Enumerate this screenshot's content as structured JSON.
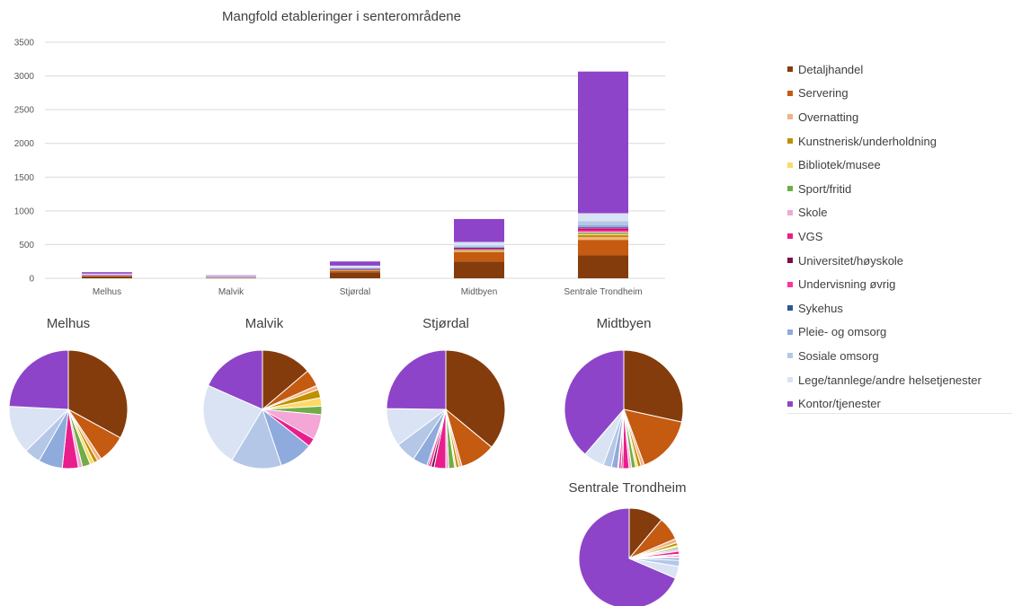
{
  "chart_data": [
    {
      "type": "bar",
      "stacked": true,
      "title": "Mangfold etableringer i senterområdene",
      "categories": [
        "Melhus",
        "Malvik",
        "Stjørdal",
        "Midtbyen",
        "Sentrale Trondheim"
      ],
      "ylim": [
        0,
        3500
      ],
      "yticks": [
        0,
        500,
        1000,
        1500,
        2000,
        2500,
        3000,
        3500
      ],
      "grid": true,
      "legend_position": "right",
      "series": [
        {
          "name": "Detaljhandel",
          "color": "#843c0c",
          "values": [
            30,
            6,
            90,
            250,
            340
          ]
        },
        {
          "name": "Servering",
          "color": "#c55a11",
          "values": [
            7,
            2,
            24,
            140,
            230
          ]
        },
        {
          "name": "Overnatting",
          "color": "#f4b183",
          "values": [
            1,
            0.5,
            2,
            8,
            40
          ]
        },
        {
          "name": "Kunstnerisk/underholdning",
          "color": "#bf9000",
          "values": [
            1,
            1,
            2,
            8,
            30
          ]
        },
        {
          "name": "Bibliotek/musee",
          "color": "#ffd966",
          "values": [
            1,
            1,
            1,
            5,
            15
          ]
        },
        {
          "name": "Sport/fritid",
          "color": "#70ad47",
          "values": [
            2,
            1,
            4,
            10,
            20
          ]
        },
        {
          "name": "Skole",
          "color": "#f4a6d7",
          "values": [
            1,
            3,
            2,
            6,
            20
          ]
        },
        {
          "name": "VGS",
          "color": "#e91e8c",
          "values": [
            4,
            1,
            8,
            15,
            30
          ]
        },
        {
          "name": "Universitet/høyskole",
          "color": "#7b0d4a",
          "values": [
            0,
            0,
            2,
            4,
            10
          ]
        },
        {
          "name": "Undervisning øvrig",
          "color": "#ff3399",
          "values": [
            0,
            0,
            2,
            6,
            15
          ]
        },
        {
          "name": "Sykehus",
          "color": "#2f5597",
          "values": [
            0,
            0,
            1,
            2,
            10
          ]
        },
        {
          "name": "Pleie- og omsorg",
          "color": "#8faadc",
          "values": [
            6,
            4,
            10,
            15,
            25
          ]
        },
        {
          "name": "Sosiale omsorg",
          "color": "#b4c7e7",
          "values": [
            4,
            6,
            14,
            20,
            60
          ]
        },
        {
          "name": "Lege/tannlege/andre helsetjenester",
          "color": "#dae3f3",
          "values": [
            12,
            10,
            26,
            50,
            120
          ]
        },
        {
          "name": "Kontor/tjenester",
          "color": "#8e44c8",
          "values": [
            22,
            8,
            62,
            340,
            2100
          ]
        }
      ]
    },
    {
      "type": "pie",
      "title": "Melhus",
      "data_from": "series column 0"
    },
    {
      "type": "pie",
      "title": "Malvik",
      "data_from": "series column 1"
    },
    {
      "type": "pie",
      "title": "Stjørdal",
      "data_from": "series column 2"
    },
    {
      "type": "pie",
      "title": "Midtbyen",
      "data_from": "series column 3"
    },
    {
      "type": "pie",
      "title": "Sentrale Trondheim",
      "data_from": "series column 4"
    }
  ]
}
